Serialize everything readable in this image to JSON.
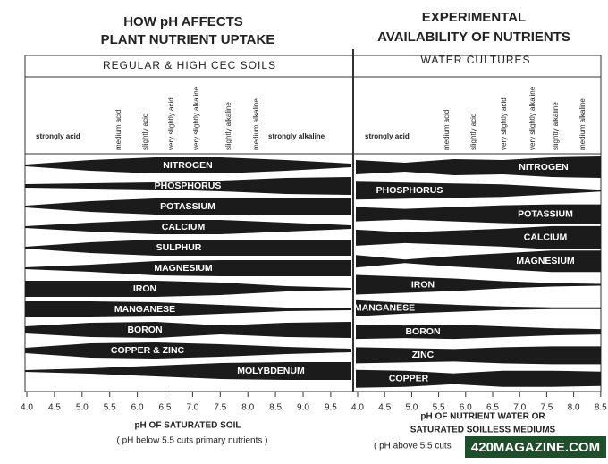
{
  "left": {
    "title": [
      "HOW pH AFFECTS",
      "PLANT NUTRIENT UPTAKE"
    ],
    "header": "REGULAR & HIGH CEC SOILS",
    "zones": [
      "strongly acid",
      "medium acid",
      "slightly acid",
      "very slightly acid",
      "very slightly alkaline",
      "slightly alkaline",
      "medium alkaline",
      "strongly alkaline"
    ],
    "nutrients": [
      "NITROGEN",
      "PHOSPHORUS",
      "POTASSIUM",
      "CALCIUM",
      "SULPHUR",
      "MAGNESIUM",
      "IRON",
      "MANGANESE",
      "BORON",
      "COPPER & ZINC",
      "MOLYBDENUM"
    ],
    "ticks": [
      "4.0",
      "4.5",
      "5.0",
      "5.5",
      "6.0",
      "6.5",
      "7.0",
      "7.5",
      "8.0",
      "8.5",
      "9.0",
      "9.5"
    ],
    "axis_label": "pH OF SATURATED SOIL",
    "note": "( pH below 5.5 cuts primary nutrients )"
  },
  "right": {
    "title": [
      "EXPERIMENTAL",
      "AVAILABILITY OF NUTRIENTS"
    ],
    "header": "WATER CULTURES",
    "zones": [
      "strongly acid",
      "medium acid",
      "slightly acid",
      "very slightly acid",
      "very slightly alkaline",
      "slightly alkaline",
      "medium alkaline"
    ],
    "nutrients": [
      "NITROGEN",
      "PHOSPHORUS",
      "POTASSIUM",
      "CALCIUM",
      "MAGNESIUM",
      "IRON",
      "MANGANESE",
      "BORON",
      "ZINC",
      "COPPER"
    ],
    "ticks": [
      "4.0",
      "4.5",
      "5.0",
      "5.5",
      "6.0",
      "6.5",
      "7.0",
      "7.5",
      "8.0",
      "8.5"
    ],
    "axis_label": [
      "pH OF NUTRIENT WATER OR",
      "SATURATED SOILLESS MEDIUMS"
    ],
    "note": "( pH above 5.5 cuts"
  },
  "watermark": "420MAGAZINE.COM"
}
